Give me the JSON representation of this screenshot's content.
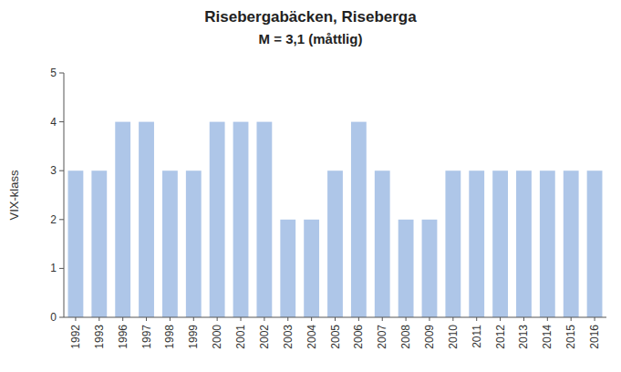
{
  "chart_data": {
    "type": "bar",
    "title": "Risebergabäcken, Riseberga",
    "subtitle": "M = 3,1 (måttlig)",
    "y_label": "VIX-klass",
    "categories": [
      "1992",
      "1993",
      "1996",
      "1997",
      "1998",
      "1999",
      "2000",
      "2001",
      "2002",
      "2003",
      "2004",
      "2005",
      "2006",
      "2007",
      "2008",
      "2009",
      "2010",
      "2011",
      "2012",
      "2013",
      "2014",
      "2015",
      "2016"
    ],
    "values": [
      3,
      3,
      4,
      4,
      3,
      3,
      4,
      4,
      4,
      2,
      2,
      3,
      4,
      3,
      2,
      2,
      3,
      3,
      3,
      3,
      3,
      3,
      3
    ],
    "color": "#aec6e8",
    "ylim": [
      0,
      5
    ],
    "yticks": [
      0,
      1,
      2,
      3,
      4,
      5
    ],
    "grid": false
  }
}
